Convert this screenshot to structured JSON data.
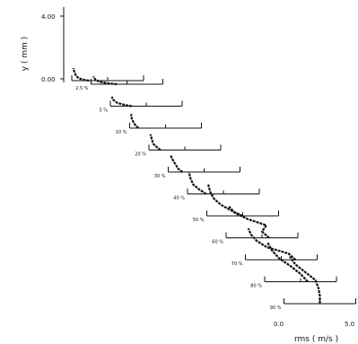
{
  "chart_data": {
    "type": "line",
    "title": "",
    "ylabel": "y ( mm )",
    "xlabel": "rms ( m/s )",
    "yticks": [
      "4.00",
      "0.00"
    ],
    "ylim": [
      0,
      4
    ],
    "xticks": [
      "0.0",
      "5.0"
    ],
    "xlim": [
      0,
      5
    ],
    "profiles": [
      {
        "label": "",
        "station": 0,
        "y": [
          0.0,
          0.06,
          0.15,
          0.3,
          0.5,
          0.8
        ],
        "rms": [
          1.2,
          0.8,
          0.5,
          0.3,
          0.2,
          0.1
        ]
      },
      {
        "label": "2.5 %",
        "station": 1,
        "y": [
          0.0,
          0.06,
          0.15,
          0.3,
          0.5
        ],
        "rms": [
          1.8,
          1.2,
          0.6,
          0.3,
          0.15
        ]
      },
      {
        "label": "5 %",
        "station": 2,
        "y": [
          0.0,
          0.08,
          0.2,
          0.4,
          0.6
        ],
        "rms": [
          1.5,
          1.0,
          0.5,
          0.2,
          0.1
        ]
      },
      {
        "label": "10 %",
        "station": 3,
        "y": [
          0.0,
          0.1,
          0.3,
          0.6,
          0.9
        ],
        "rms": [
          0.6,
          0.5,
          0.3,
          0.15,
          0.1
        ]
      },
      {
        "label": "20 %",
        "station": 4,
        "y": [
          0.0,
          0.15,
          0.4,
          0.7,
          1.0
        ],
        "rms": [
          0.8,
          0.6,
          0.3,
          0.2,
          0.1
        ]
      },
      {
        "label": "30 %",
        "station": 5,
        "y": [
          0.0,
          0.2,
          0.5,
          0.8,
          1.1
        ],
        "rms": [
          1.0,
          0.7,
          0.5,
          0.3,
          0.15
        ]
      },
      {
        "label": "40 %",
        "station": 6,
        "y": [
          0.0,
          0.3,
          0.6,
          1.0,
          1.4
        ],
        "rms": [
          1.3,
          0.8,
          0.4,
          0.2,
          0.1
        ]
      },
      {
        "label": "50 %",
        "station": 7,
        "y": [
          0.0,
          0.3,
          0.7,
          1.1,
          1.5,
          2.0
        ],
        "rms": [
          2.5,
          1.8,
          1.0,
          0.5,
          0.25,
          0.1
        ]
      },
      {
        "label": "60 %",
        "station": 8,
        "y": [
          0.0,
          0.4,
          0.8,
          1.2,
          1.6,
          2.0
        ],
        "rms": [
          3.0,
          2.5,
          2.8,
          1.5,
          0.6,
          0.2
        ]
      },
      {
        "label": "70 %",
        "station": 9,
        "y": [
          0.0,
          0.4,
          0.8,
          1.2,
          1.6,
          2.0
        ],
        "rms": [
          3.5,
          3.0,
          1.5,
          0.8,
          0.4,
          0.2
        ]
      },
      {
        "label": "80 %",
        "station": 10,
        "y": [
          0.0,
          0.5,
          1.0,
          1.5,
          2.0,
          2.5
        ],
        "rms": [
          3.0,
          2.5,
          1.8,
          1.0,
          0.5,
          0.2
        ]
      },
      {
        "label": "90 %",
        "station": 11,
        "y": [
          0.0,
          0.5,
          1.0,
          1.5,
          2.0,
          2.5,
          3.0
        ],
        "rms": [
          2.5,
          2.5,
          2.4,
          2.2,
          1.5,
          0.8,
          0.4
        ]
      }
    ]
  }
}
